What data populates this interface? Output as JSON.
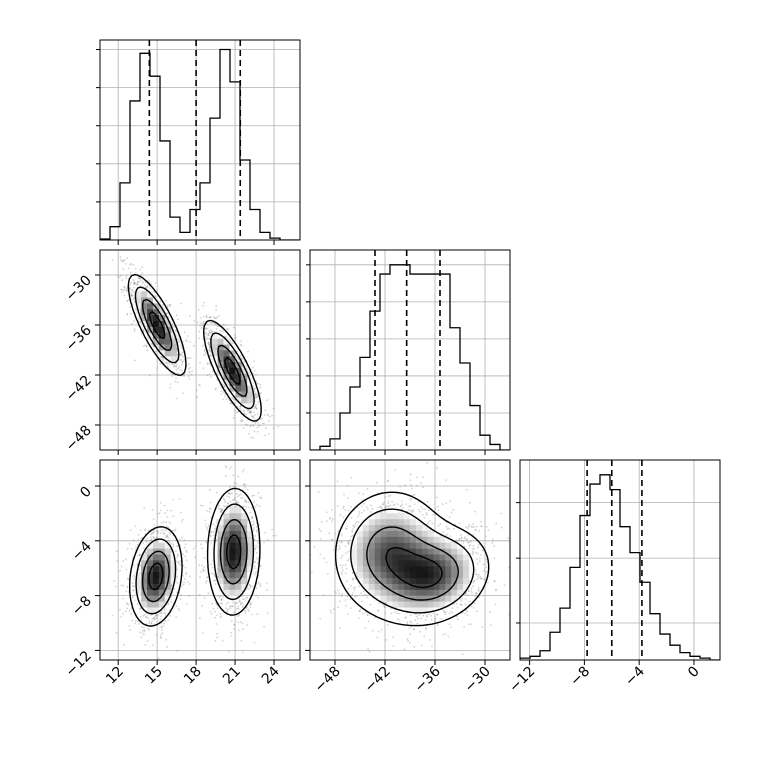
{
  "chart_data": {
    "type": "corner",
    "title": "",
    "grid": true,
    "colors": {
      "ink": "#000000",
      "grid": "#b0b0b0",
      "frame": "#000000",
      "points": "#808080"
    },
    "params": [
      {
        "key": "p0",
        "ticks": [
          12,
          15,
          18,
          21,
          24
        ],
        "tick_labels": [
          "12",
          "15",
          "18",
          "21",
          "24"
        ],
        "range": [
          10.6,
          26.0
        ],
        "quantiles": [
          14.4,
          18.0,
          21.4
        ]
      },
      {
        "key": "p1",
        "ticks": [
          -30,
          -36,
          -42,
          -48
        ],
        "tick_labels": [
          "−30",
          "−36",
          "−42",
          "−48"
        ],
        "range": [
          -51.0,
          -27.0
        ],
        "quantiles": [
          -43.2,
          -39.4,
          -35.4
        ]
      },
      {
        "key": "p2",
        "ticks": [
          0,
          -4,
          -8,
          -12
        ],
        "tick_labels": [
          "0",
          "−4",
          "−8",
          "−12"
        ],
        "range": [
          -12.7,
          1.9
        ],
        "quantiles": [
          -7.8,
          -6.0,
          -3.8
        ]
      }
    ],
    "histograms": [
      {
        "param": "p0",
        "ylim": [
          0,
          1.05
        ],
        "y_ticks": [
          0.2,
          0.4,
          0.6,
          0.8,
          1.0
        ],
        "bin_edges": [
          10.6,
          11.37,
          12.14,
          12.91,
          13.68,
          14.45,
          15.22,
          15.99,
          16.76,
          17.53,
          18.3,
          19.07,
          19.84,
          20.61,
          21.38,
          22.15,
          22.92,
          23.69,
          24.46,
          25.23,
          26.0
        ],
        "counts": [
          0.005,
          0.07,
          0.3,
          0.73,
          0.98,
          0.86,
          0.52,
          0.12,
          0.04,
          0.16,
          0.3,
          0.64,
          1.0,
          0.83,
          0.42,
          0.16,
          0.04,
          0.01,
          0.0,
          0.0
        ]
      },
      {
        "param": "p1",
        "ylim": [
          0,
          1.08
        ],
        "y_ticks": [
          0.2,
          0.4,
          0.6,
          0.8,
          1.0
        ],
        "bin_edges": [
          -51.0,
          -49.8,
          -48.6,
          -47.4,
          -46.2,
          -45.0,
          -43.8,
          -42.6,
          -41.4,
          -40.2,
          -39.0,
          -37.8,
          -36.6,
          -35.4,
          -34.2,
          -33.0,
          -31.8,
          -30.6,
          -29.4,
          -28.2,
          -27.0
        ],
        "counts": [
          0.0,
          0.02,
          0.06,
          0.2,
          0.34,
          0.5,
          0.75,
          0.95,
          1.0,
          1.0,
          0.95,
          0.95,
          0.95,
          0.95,
          0.66,
          0.47,
          0.24,
          0.08,
          0.03,
          0.0
        ]
      },
      {
        "param": "p2",
        "ylim": [
          0,
          1.08
        ],
        "y_ticks": [
          0.2,
          0.55,
          0.85
        ],
        "bin_edges": [
          -12.7,
          -11.97,
          -11.24,
          -10.51,
          -9.78,
          -9.05,
          -8.32,
          -7.59,
          -6.86,
          -6.13,
          -5.4,
          -4.67,
          -3.94,
          -3.21,
          -2.48,
          -1.75,
          -1.02,
          -0.29,
          0.44,
          1.17,
          1.9
        ],
        "counts": [
          0.01,
          0.02,
          0.05,
          0.15,
          0.28,
          0.5,
          0.78,
          0.95,
          1.0,
          0.92,
          0.72,
          0.58,
          0.42,
          0.25,
          0.14,
          0.08,
          0.04,
          0.02,
          0.01,
          0.0
        ]
      }
    ],
    "pairs": [
      {
        "x": "p0",
        "y": "p1",
        "modes": [
          {
            "mx": 15.0,
            "my": -36.0,
            "sx": 1.1,
            "sy": 3.0,
            "rho": -0.78,
            "weight": 0.5
          },
          {
            "mx": 20.8,
            "my": -41.5,
            "sx": 1.1,
            "sy": 3.0,
            "rho": -0.78,
            "weight": 0.5
          }
        ]
      },
      {
        "x": "p0",
        "y": "p2",
        "modes": [
          {
            "mx": 14.9,
            "my": -6.6,
            "sx": 1.0,
            "sy": 1.8,
            "rho": 0.2,
            "weight": 0.5
          },
          {
            "mx": 20.9,
            "my": -4.8,
            "sx": 1.0,
            "sy": 2.3,
            "rho": 0.05,
            "weight": 0.5
          }
        ]
      },
      {
        "x": "p1",
        "y": "p2",
        "modes": [
          {
            "mx": -41.5,
            "my": -4.8,
            "sx": 3.4,
            "sy": 2.3,
            "rho": 0.05,
            "weight": 0.5
          },
          {
            "mx": -36.0,
            "my": -6.6,
            "sx": 3.4,
            "sy": 1.8,
            "rho": 0.2,
            "weight": 0.5
          }
        ]
      }
    ],
    "contour_levels_sigma": [
      0.5,
      1.0,
      1.5,
      2.0
    ]
  }
}
